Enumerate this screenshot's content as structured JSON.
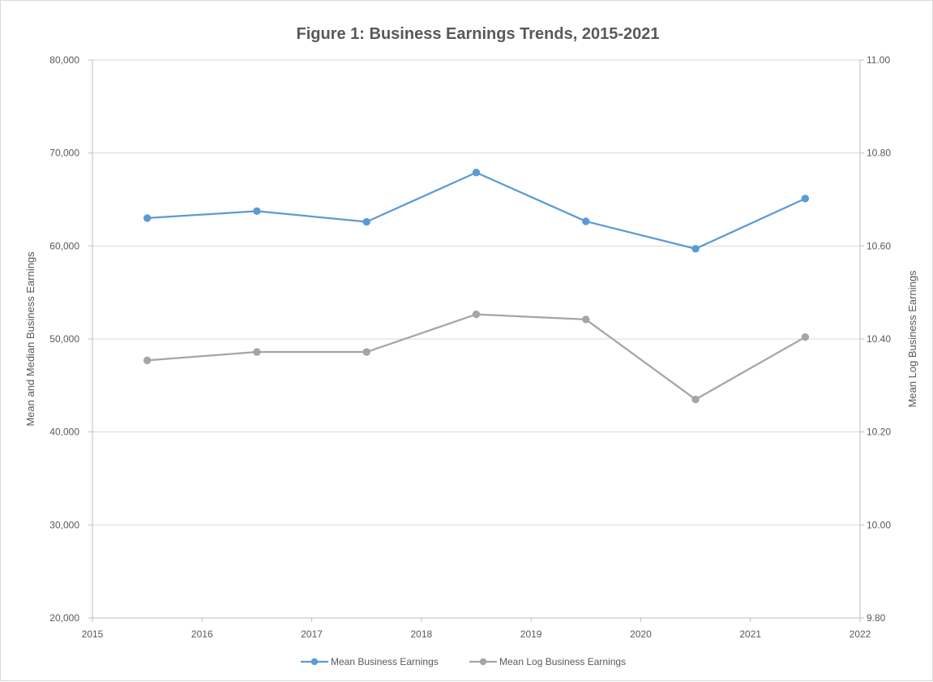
{
  "chart_data": {
    "type": "line",
    "title": "Figure 1: Business Earnings Trends, 2015-2021",
    "ylabel": "Mean and Median Business Earnings",
    "y2label": "Mean Log Business Earnings",
    "xlim": [
      2015,
      2022
    ],
    "ylim": [
      20000,
      80000
    ],
    "y2lim": [
      9.8,
      11.0
    ],
    "x_ticks": [
      "2015",
      "2016",
      "2017",
      "2018",
      "2019",
      "2020",
      "2021",
      "2022"
    ],
    "y_ticks": [
      "20,000",
      "30,000",
      "40,000",
      "50,000",
      "60,000",
      "70,000",
      "80,000"
    ],
    "y2_ticks": [
      "9.80",
      "10.00",
      "10.20",
      "10.40",
      "10.60",
      "10.80",
      "11.00"
    ],
    "grid": true,
    "legend_position": "bottom",
    "x": [
      2015.5,
      2016.5,
      2017.5,
      2018.5,
      2019.5,
      2020.5,
      2021.5
    ],
    "series": [
      {
        "name": "Mean Business Earnings",
        "axis": "left",
        "color": "#5b9bd5",
        "values": [
          63000,
          63750,
          62600,
          67900,
          62650,
          59700,
          65100
        ]
      },
      {
        "name": "Mean Log Business Earnings",
        "axis": "right",
        "color": "#a5a5a5",
        "values": [
          10.354,
          10.372,
          10.372,
          10.453,
          10.442,
          10.27,
          10.404
        ]
      }
    ]
  }
}
